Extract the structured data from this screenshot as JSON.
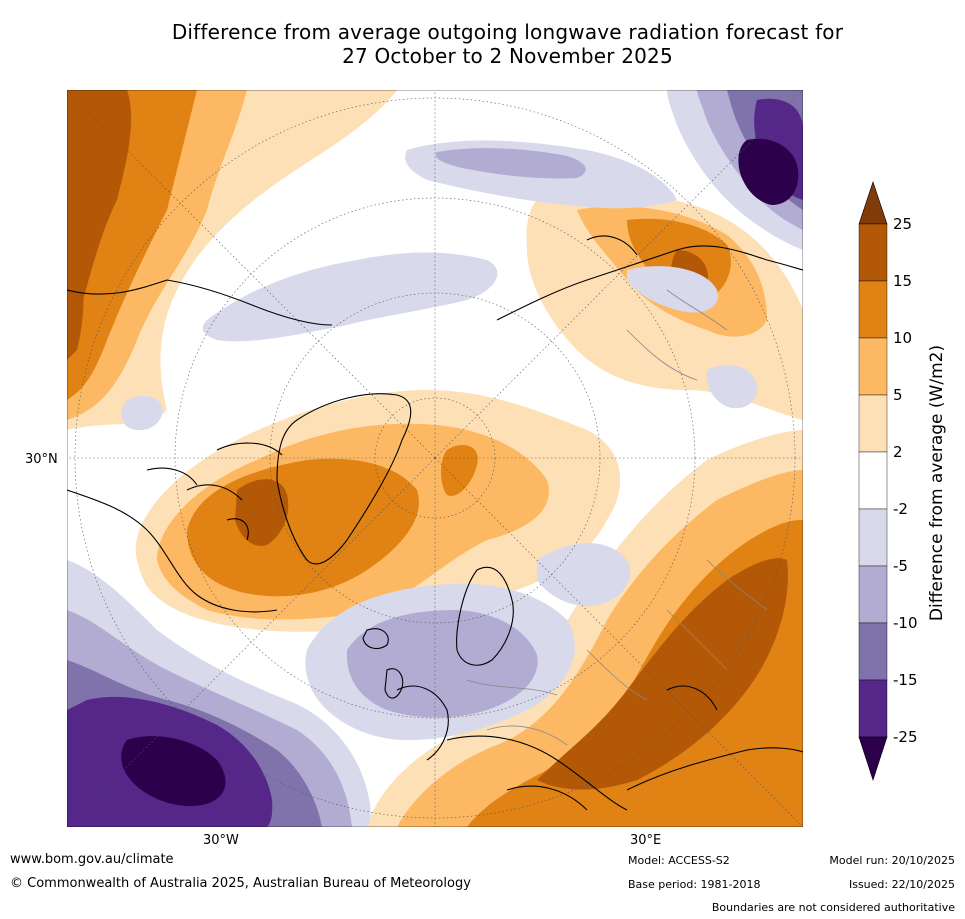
{
  "title": {
    "line1": "Difference from average outgoing longwave radiation forecast for",
    "line2": "27 October to 2 November 2025"
  },
  "map": {
    "lat_label": "30°N",
    "lon_labels": [
      "30°W",
      "30°E"
    ]
  },
  "colorbar": {
    "title": "Difference from average (W/m2)",
    "ticks": [
      "25",
      "15",
      "10",
      "5",
      "2",
      "-2",
      "-5",
      "-10",
      "-15",
      "-25"
    ],
    "colors": {
      "above_25": "#7f3b08",
      "15_to_25": "#b35806",
      "10_to_15": "#e08214",
      "5_to_10": "#fdb863",
      "2_to_5": "#fee0b6",
      "neutral": "#ffffff",
      "m5_to_m2": "#d8daeb",
      "m10_to_m5": "#b2abd2",
      "m15_to_m10": "#8073ac",
      "m25_to_m15": "#542788",
      "below_m25": "#2d004b"
    }
  },
  "footer": {
    "website": "www.bom.gov.au/climate",
    "copyright": "© Commonwealth of Australia 2025, Australian Bureau of Meteorology",
    "model": "Model: ACCESS-S2",
    "base_period": "Base period: 1981-2018",
    "model_run": "Model run: 20/10/2025",
    "issued": "Issued: 22/10/2025",
    "boundaries_note": "Boundaries are not considered authoritative"
  }
}
